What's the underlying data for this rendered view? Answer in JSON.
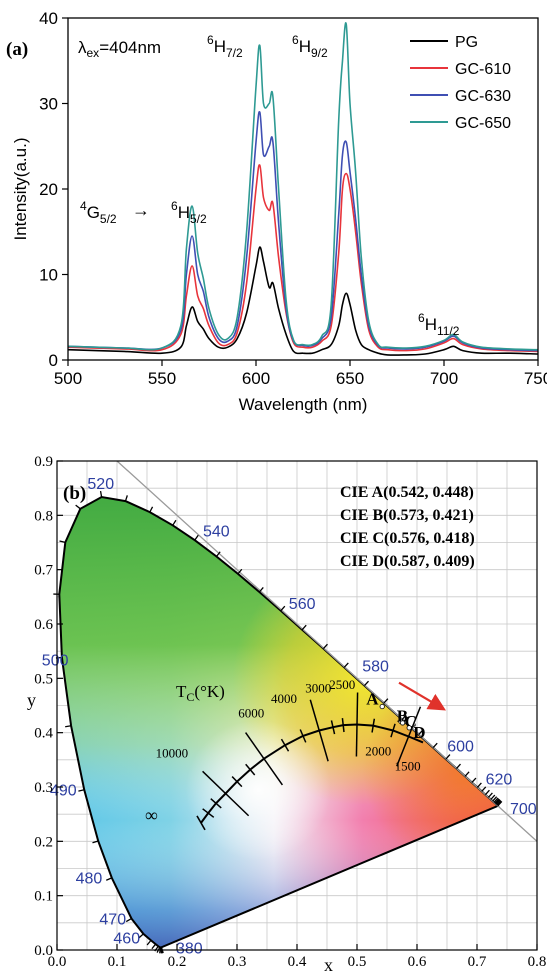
{
  "chart_data": [
    {
      "panel_label": "(a)",
      "type": "line",
      "xlabel": "Wavelength (nm)",
      "ylabel": "Intensity(a.u.)",
      "xlim": [
        500,
        750
      ],
      "ylim": [
        0,
        40
      ],
      "xticks": [
        500,
        550,
        600,
        650,
        700,
        750
      ],
      "yticks": [
        0,
        10,
        20,
        30,
        40
      ],
      "excitation": {
        "symbol": "λ",
        "sub": "ex",
        "text": "=404nm"
      },
      "annotations": [
        {
          "sup": "4",
          "base": "G",
          "sub": "5/2",
          "arrow": "→"
        },
        {
          "sup": "6",
          "base": "H",
          "sub": "5/2",
          "x": 566,
          "y": 18
        },
        {
          "sup": "6",
          "base": "H",
          "sub": "7/2",
          "x": 602,
          "y": 37
        },
        {
          "sup": "6",
          "base": "H",
          "sub": "9/2",
          "x": 648,
          "y": 39
        },
        {
          "sup": "6",
          "base": "H",
          "sub": "11/2",
          "x": 705,
          "y": 3
        }
      ],
      "legend_position": "top-right",
      "series": [
        {
          "name": "PG",
          "color": "#000000",
          "x": [
            500,
            530,
            550,
            560,
            563,
            566,
            569,
            572,
            575,
            580,
            585,
            590,
            595,
            600,
            602,
            604,
            607,
            609,
            612,
            616,
            620,
            625,
            630,
            635,
            640,
            644,
            646,
            648,
            650,
            653,
            656,
            660,
            665,
            670,
            680,
            690,
            700,
            705,
            710,
            720,
            735,
            750
          ],
          "y": [
            1.2,
            1.0,
            0.8,
            1.5,
            4.0,
            6.2,
            4.5,
            3.6,
            2.5,
            1.5,
            1.5,
            2.5,
            5.5,
            11.0,
            13.2,
            11.5,
            8.5,
            9.0,
            6.0,
            3.0,
            1.0,
            0.8,
            0.8,
            1.2,
            1.8,
            4.0,
            6.5,
            7.8,
            6.5,
            3.5,
            1.8,
            1.2,
            0.8,
            0.6,
            0.6,
            0.7,
            1.2,
            1.6,
            1.1,
            0.8,
            0.8,
            0.7
          ]
        },
        {
          "name": "GC-610",
          "color": "#e8343b",
          "x": [
            500,
            530,
            550,
            560,
            563,
            566,
            569,
            572,
            575,
            580,
            585,
            590,
            595,
            600,
            602,
            604,
            607,
            609,
            612,
            616,
            620,
            625,
            630,
            635,
            640,
            644,
            646,
            648,
            650,
            653,
            656,
            660,
            665,
            670,
            680,
            690,
            700,
            705,
            710,
            720,
            735,
            750
          ],
          "y": [
            1.5,
            1.3,
            1.2,
            3.0,
            7.5,
            11.0,
            7.5,
            6.0,
            4.0,
            2.0,
            1.8,
            3.2,
            9.0,
            20.0,
            22.8,
            19.0,
            17.5,
            18.3,
            12.0,
            5.5,
            2.0,
            1.5,
            1.5,
            2.2,
            4.0,
            12.5,
            20.0,
            21.8,
            20.0,
            15.0,
            9.0,
            3.5,
            1.5,
            1.2,
            1.1,
            1.3,
            2.0,
            2.5,
            1.8,
            1.3,
            1.1,
            1.0
          ]
        },
        {
          "name": "GC-630",
          "color": "#3f4fb3",
          "x": [
            500,
            530,
            550,
            560,
            563,
            566,
            569,
            572,
            575,
            580,
            585,
            590,
            595,
            600,
            602,
            604,
            607,
            609,
            612,
            616,
            620,
            625,
            630,
            635,
            640,
            644,
            646,
            648,
            650,
            653,
            656,
            660,
            665,
            670,
            680,
            690,
            700,
            705,
            710,
            720,
            735,
            750
          ],
          "y": [
            1.6,
            1.4,
            1.4,
            3.5,
            10.0,
            14.5,
            10.0,
            8.0,
            5.0,
            2.5,
            2.2,
            4.0,
            12.0,
            25.5,
            29.0,
            24.0,
            25.0,
            25.5,
            16.0,
            6.0,
            2.2,
            1.7,
            1.7,
            2.5,
            5.0,
            17.0,
            24.0,
            25.5,
            22.0,
            16.5,
            10.0,
            4.0,
            1.7,
            1.4,
            1.3,
            1.5,
            2.2,
            2.8,
            2.0,
            1.4,
            1.2,
            1.1
          ]
        },
        {
          "name": "GC-650",
          "color": "#2e9a93",
          "x": [
            500,
            530,
            550,
            560,
            563,
            566,
            569,
            572,
            575,
            580,
            585,
            590,
            595,
            600,
            602,
            604,
            607,
            609,
            612,
            616,
            620,
            625,
            630,
            635,
            640,
            644,
            646,
            648,
            650,
            653,
            656,
            660,
            665,
            670,
            680,
            690,
            700,
            705,
            710,
            720,
            735,
            750
          ],
          "y": [
            1.6,
            1.4,
            1.4,
            4.0,
            13.0,
            18.0,
            12.5,
            9.5,
            6.0,
            3.0,
            2.5,
            5.0,
            15.0,
            32.0,
            36.8,
            30.0,
            30.0,
            30.8,
            20.0,
            7.0,
            2.3,
            1.8,
            1.8,
            2.8,
            6.5,
            28.0,
            35.0,
            39.3,
            30.0,
            22.0,
            12.0,
            4.5,
            1.8,
            1.5,
            1.4,
            1.6,
            2.3,
            3.0,
            2.1,
            1.5,
            1.3,
            1.2
          ]
        }
      ]
    },
    {
      "panel_label": "(b)",
      "type": "scatter",
      "xlabel": "x",
      "ylabel": "y",
      "xlim": [
        0.0,
        0.8
      ],
      "ylim": [
        0.0,
        0.9
      ],
      "xticks": [
        "0.0",
        "0.1",
        "0.2",
        "0.3",
        "0.4",
        "0.5",
        "0.6",
        "0.7",
        "0.8"
      ],
      "yticks": [
        "0.0",
        "0.1",
        "0.2",
        "0.3",
        "0.4",
        "0.5",
        "0.6",
        "0.7",
        "0.8",
        "0.9"
      ],
      "grid": true,
      "cie_legend": [
        "CIE  A(0.542, 0.448)",
        "CIE  B(0.573, 0.421)",
        "CIE  C(0.576, 0.418)",
        "CIE  D(0.587, 0.409)"
      ],
      "points": [
        {
          "label": "A",
          "x": 0.542,
          "y": 0.448
        },
        {
          "label": "B",
          "x": 0.573,
          "y": 0.421
        },
        {
          "label": "C",
          "x": 0.576,
          "y": 0.418
        },
        {
          "label": "D",
          "x": 0.587,
          "y": 0.409
        }
      ],
      "wavelength_labels": [
        {
          "text": "380",
          "x": 0.175,
          "y": 0.005
        },
        {
          "text": "460",
          "x": 0.144,
          "y": 0.03
        },
        {
          "text": "470",
          "x": 0.124,
          "y": 0.058
        },
        {
          "text": "480",
          "x": 0.091,
          "y": 0.133
        },
        {
          "text": "490",
          "x": 0.045,
          "y": 0.295
        },
        {
          "text": "500",
          "x": 0.008,
          "y": 0.538
        },
        {
          "text": "520",
          "x": 0.074,
          "y": 0.834
        },
        {
          "text": "540",
          "x": 0.23,
          "y": 0.754
        },
        {
          "text": "560",
          "x": 0.373,
          "y": 0.624
        },
        {
          "text": "580",
          "x": 0.512,
          "y": 0.487
        },
        {
          "text": "600",
          "x": 0.627,
          "y": 0.373
        },
        {
          "text": "620",
          "x": 0.691,
          "y": 0.308
        },
        {
          "text": "700",
          "x": 0.735,
          "y": 0.265
        }
      ],
      "cct_title": {
        "base": "T",
        "sub": "C",
        "text": "(°K)"
      },
      "cct_labels": [
        {
          "text": "10000",
          "x": 0.281,
          "y": 0.288
        },
        {
          "text": "6000",
          "x": 0.322,
          "y": 0.332
        },
        {
          "text": "4000",
          "x": 0.38,
          "y": 0.377
        },
        {
          "text": "3000",
          "x": 0.437,
          "y": 0.404
        },
        {
          "text": "2500",
          "x": 0.477,
          "y": 0.414
        },
        {
          "text": "2000",
          "x": 0.527,
          "y": 0.413
        },
        {
          "text": "1500",
          "x": 0.586,
          "y": 0.393
        },
        {
          "text": "∞",
          "x": 0.24,
          "y": 0.234
        }
      ],
      "planckian": {
        "x": [
          0.24,
          0.252,
          0.265,
          0.281,
          0.3,
          0.322,
          0.345,
          0.38,
          0.41,
          0.437,
          0.46,
          0.477,
          0.5,
          0.527,
          0.56,
          0.586,
          0.61
        ],
        "y": [
          0.234,
          0.252,
          0.27,
          0.288,
          0.31,
          0.332,
          0.352,
          0.377,
          0.394,
          0.404,
          0.41,
          0.414,
          0.415,
          0.413,
          0.404,
          0.393,
          0.382
        ]
      },
      "spectral_locus": {
        "x": [
          0.1741,
          0.1738,
          0.1733,
          0.1726,
          0.1714,
          0.1689,
          0.1644,
          0.1566,
          0.144,
          0.1241,
          0.0913,
          0.0687,
          0.0454,
          0.0235,
          0.0082,
          0.0039,
          0.0139,
          0.0389,
          0.0743,
          0.1142,
          0.1547,
          0.1929,
          0.2296,
          0.2658,
          0.3016,
          0.3373,
          0.3731,
          0.4087,
          0.4441,
          0.4788,
          0.5125,
          0.5448,
          0.5752,
          0.6029,
          0.627,
          0.6482,
          0.6658,
          0.6801,
          0.6915,
          0.7006,
          0.7079,
          0.714,
          0.719,
          0.723,
          0.726,
          0.7283,
          0.73,
          0.7311,
          0.732,
          0.7334,
          0.7347
        ],
        "y": [
          0.005,
          0.0049,
          0.0048,
          0.0048,
          0.0051,
          0.0069,
          0.0109,
          0.0177,
          0.0297,
          0.0578,
          0.1327,
          0.2007,
          0.295,
          0.4127,
          0.5384,
          0.6548,
          0.7502,
          0.812,
          0.8338,
          0.8262,
          0.8059,
          0.7816,
          0.7543,
          0.7243,
          0.6923,
          0.6589,
          0.6245,
          0.5896,
          0.5547,
          0.5202,
          0.4866,
          0.4544,
          0.4242,
          0.3965,
          0.3725,
          0.3514,
          0.334,
          0.3197,
          0.3083,
          0.2993,
          0.292,
          0.2859,
          0.2809,
          0.277,
          0.274,
          0.2717,
          0.27,
          0.2689,
          0.268,
          0.2666,
          0.2653
        ]
      },
      "arrow_color": "#e0322b",
      "label_color": "#2d3fa0"
    }
  ]
}
